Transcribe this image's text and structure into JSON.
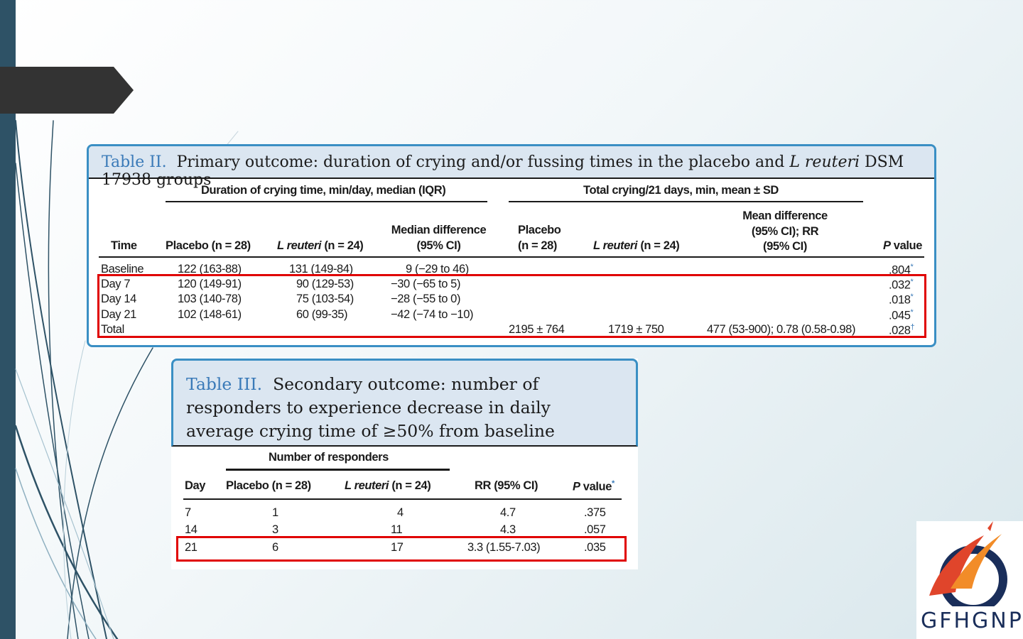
{
  "table2": {
    "caption_num": "Table II.",
    "caption_a": "Primary outcome: duration of crying and/or fussing times in the placebo and",
    "caption_it": "L reuteri",
    "caption_b": "DSM 17938 groups",
    "group1": "Duration of crying time, min/day, median (IQR)",
    "group2": "Total crying/21 days, min, mean ± SD",
    "col_time": "Time",
    "col_placebo": "Placebo (n = 28)",
    "col_lr_it": "L reuteri",
    "col_lr_n": "(n = 24)",
    "col_md_1": "Median difference",
    "col_md_2": "(95% CI)",
    "col_tp_1": "Placebo",
    "col_tp_2": "(n = 28)",
    "col_tl_it": "L reuteri",
    "col_tl_n": "(n = 24)",
    "col_mean_1": "Mean difference",
    "col_mean_2": "(95% CI); RR",
    "col_mean_3": "(95% CI)",
    "col_p_it": "P",
    "col_p": "value",
    "rows": [
      {
        "time": "Baseline",
        "placebo": "122 (163-88)",
        "lr": "131 (149-84)",
        "md": "9 (−29 to 46)",
        "tp": "",
        "tl": "",
        "mean": "",
        "p": ".804",
        "mark": "*"
      },
      {
        "time": "Day 7",
        "placebo": "120 (149-91)",
        "lr": "90 (129-53)",
        "md": "−30 (−65 to 5)",
        "tp": "",
        "tl": "",
        "mean": "",
        "p": ".032",
        "mark": "*"
      },
      {
        "time": "Day 14",
        "placebo": "103 (140-78)",
        "lr": "75 (103-54)",
        "md": "−28 (−55 to 0)",
        "tp": "",
        "tl": "",
        "mean": "",
        "p": ".018",
        "mark": "*"
      },
      {
        "time": "Day 21",
        "placebo": "102 (148-61)",
        "lr": "60 (99-35)",
        "md": "−42 (−74 to −10)",
        "tp": "",
        "tl": "",
        "mean": "",
        "p": ".045",
        "mark": "*"
      },
      {
        "time": "Total",
        "placebo": "",
        "lr": "",
        "md": "",
        "tp": "2195 ± 764",
        "tl": "1719 ± 750",
        "mean": "477 (53-900); 0.78 (0.58-0.98)",
        "p": ".028",
        "mark": "†"
      }
    ]
  },
  "table3": {
    "caption_num": "Table III.",
    "caption_text": "Secondary outcome: number of responders to experience decrease in daily average crying time of ≥50% from baseline",
    "group": "Number of responders",
    "col_day": "Day",
    "col_placebo": "Placebo (n = 28)",
    "col_lr_it": "L reuteri",
    "col_lr_n": "(n = 24)",
    "col_rr": "RR (95% CI)",
    "col_p_it": "P",
    "col_p": "value",
    "col_p_mark": "*",
    "rows": [
      {
        "day": "7",
        "placebo": "1",
        "lr": "4",
        "rr": "4.7",
        "p": ".375"
      },
      {
        "day": "14",
        "placebo": "3",
        "lr": "11",
        "rr": "4.3",
        "p": ".057"
      },
      {
        "day": "21",
        "placebo": "6",
        "lr": "17",
        "rr": "3.3 (1.55-7.03)",
        "p": ".035"
      }
    ]
  },
  "logo": {
    "text": "GFHGNP"
  },
  "colors": {
    "accent_blue": "#3a8fc4",
    "highlight_red": "#e00000",
    "sidebar": "#2e5266"
  }
}
